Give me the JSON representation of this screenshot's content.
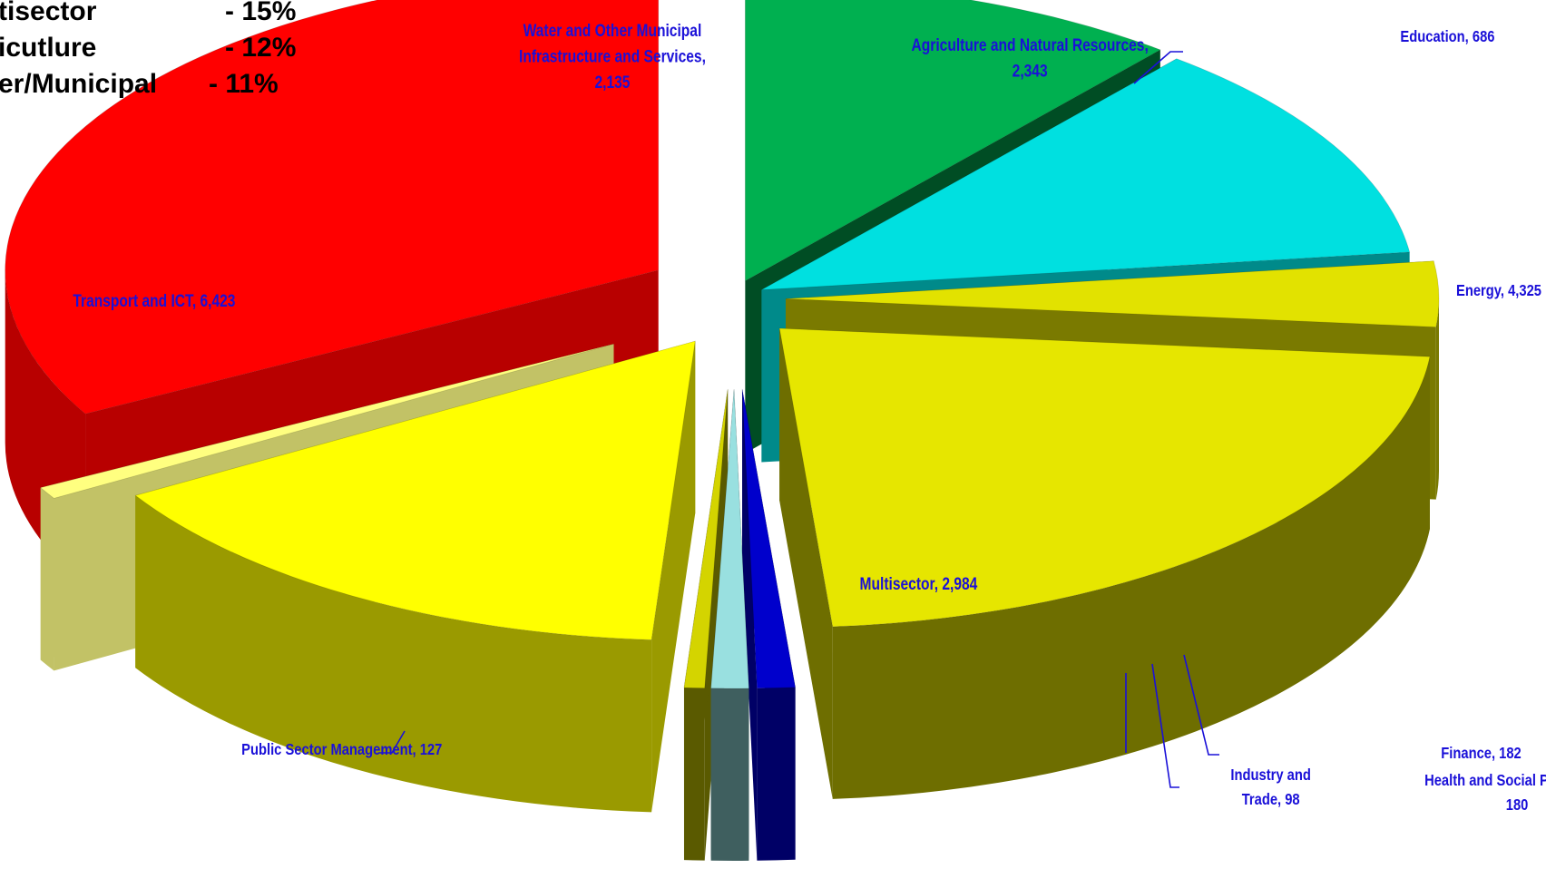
{
  "chart_data": {
    "type": "pie",
    "style": "3d-exploded",
    "legend_partial": [
      {
        "name": "tisector",
        "pct": "- 15%"
      },
      {
        "name": "icutlure",
        "pct": "- 12%"
      },
      {
        "name": "er/Municipal",
        "pct": "- 11%"
      }
    ],
    "slices": [
      {
        "name": "Water and Other Municipal Infrastructure and Services",
        "value": 2135,
        "label_lines": [
          "Water and Other Municipal",
          "Infrastructure and Services,",
          "2,135"
        ],
        "color": "#00b050"
      },
      {
        "name": "Agriculture and Natural Resources",
        "value": 2343,
        "label_lines": [
          "Agriculture and Natural Resources,",
          "2,343"
        ],
        "color": "#00e0e0"
      },
      {
        "name": "Education",
        "value": 686,
        "label_lines": [
          "Education,  686"
        ],
        "color": "#e2e200"
      },
      {
        "name": "Energy",
        "value": 4325,
        "label_lines": [
          "Energy,  4,325"
        ],
        "color": "#e6e600"
      },
      {
        "name": "Finance",
        "value": 182,
        "label_lines": [
          "Finance,  182"
        ],
        "color": "#0000cc"
      },
      {
        "name": "Health and Social Protection",
        "value": 180,
        "label_lines": [
          "Health and Social Protection,",
          "180"
        ],
        "color": "#99e0e0"
      },
      {
        "name": "Industry and Trade",
        "value": 98,
        "label_lines": [
          "Industry and",
          "Trade,  98"
        ],
        "color": "#d4d400"
      },
      {
        "name": "Multisector",
        "value": 2984,
        "label_lines": [
          "Multisector,  2,984"
        ],
        "color": "#ffff00"
      },
      {
        "name": "Public Sector Management",
        "value": 127,
        "label_lines": [
          "Public Sector Management,  127"
        ],
        "color": "#ffff80"
      },
      {
        "name": "Transport and ICT",
        "value": 6423,
        "label_lines": [
          "Transport and ICT,  6,423"
        ],
        "color": "#ff0000"
      }
    ]
  }
}
